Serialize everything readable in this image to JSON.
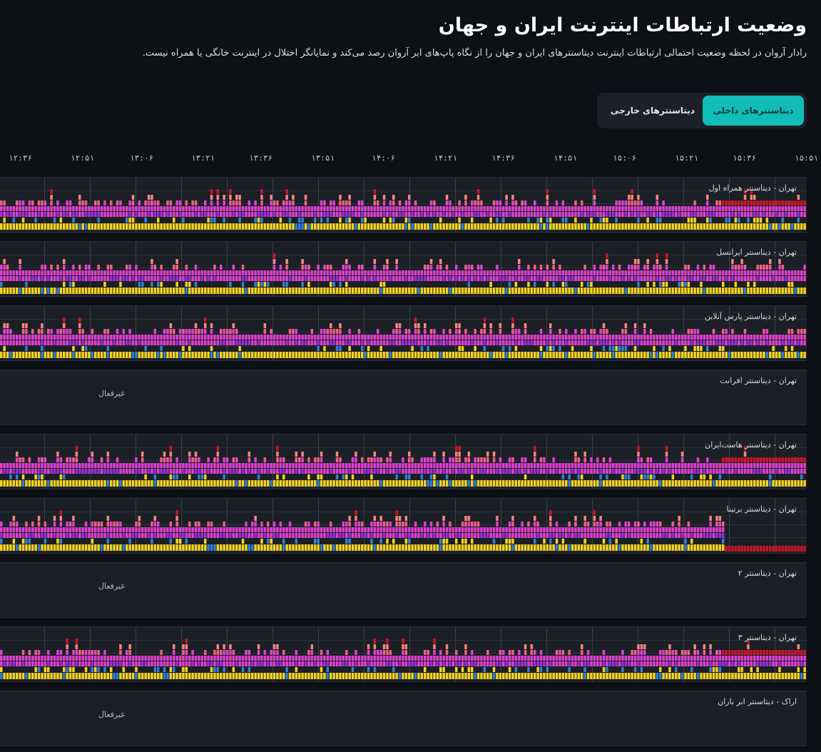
{
  "header": {
    "title": "وضعیت ارتباطات اینترنت ایران و جهان",
    "subtitle": "رادار آروان در لحظه وضعیت احتمالی ارتباطات اینترنت دیتاسنترهای ایران و جهان را از نگاه پاپ‌های ابر آروان رصد می‌کند و نمایانگر اختلال در اینترنت خانگی یا همراه نیست."
  },
  "tabs": [
    {
      "label": "دیتاسنترهای داخلی",
      "active": true
    },
    {
      "label": "دیتاسنترهای خارجی",
      "active": false
    }
  ],
  "time_axis": [
    "۱۲:۳۶",
    "۱۲:۵۱",
    "۱۳:۰۶",
    "۱۳:۲۱",
    "۱۳:۳۶",
    "۱۳:۵۱",
    "۱۴:۰۶",
    "۱۴:۲۱",
    "۱۴:۳۶",
    "۱۴:۵۱",
    "۱۵:۰۶",
    "۱۵:۲۱",
    "۱۵:۳۶",
    "۱۵:۵۱"
  ],
  "colors": {
    "yellow": "#f2d21f",
    "blue": "#2e7fd6",
    "magenta": "#e040d0",
    "purple": "#9b2fd8",
    "pink": "#f06080",
    "salmon": "#f4887a",
    "red": "#c81526",
    "accent": "#12bdb8"
  },
  "panels": [
    {
      "label": "تهران - دیتاسنتر همراه اول",
      "active": true
    },
    {
      "label": "تهران - دیتاسنتر ایرانسل",
      "active": true
    },
    {
      "label": "تهران - دیتاسنتر پارس آنلاین",
      "active": true
    },
    {
      "label": "تهران - دیتاسنتر افرانت",
      "active": false,
      "status": "غیرفعال"
    },
    {
      "label": "تهران - دیتاسنتر هاست‌ایران",
      "active": true
    },
    {
      "label": "تهران - دیتاسنتر برتینا",
      "active": true
    },
    {
      "label": "تهران - دیتاسنتر ۲",
      "active": false,
      "status": "غیرفعال"
    },
    {
      "label": "تهران - دیتاسنتر ۳",
      "active": true
    },
    {
      "label": "اراک - دیتاسنتر ابر باران",
      "active": false,
      "status": "غیرفعال"
    }
  ]
}
